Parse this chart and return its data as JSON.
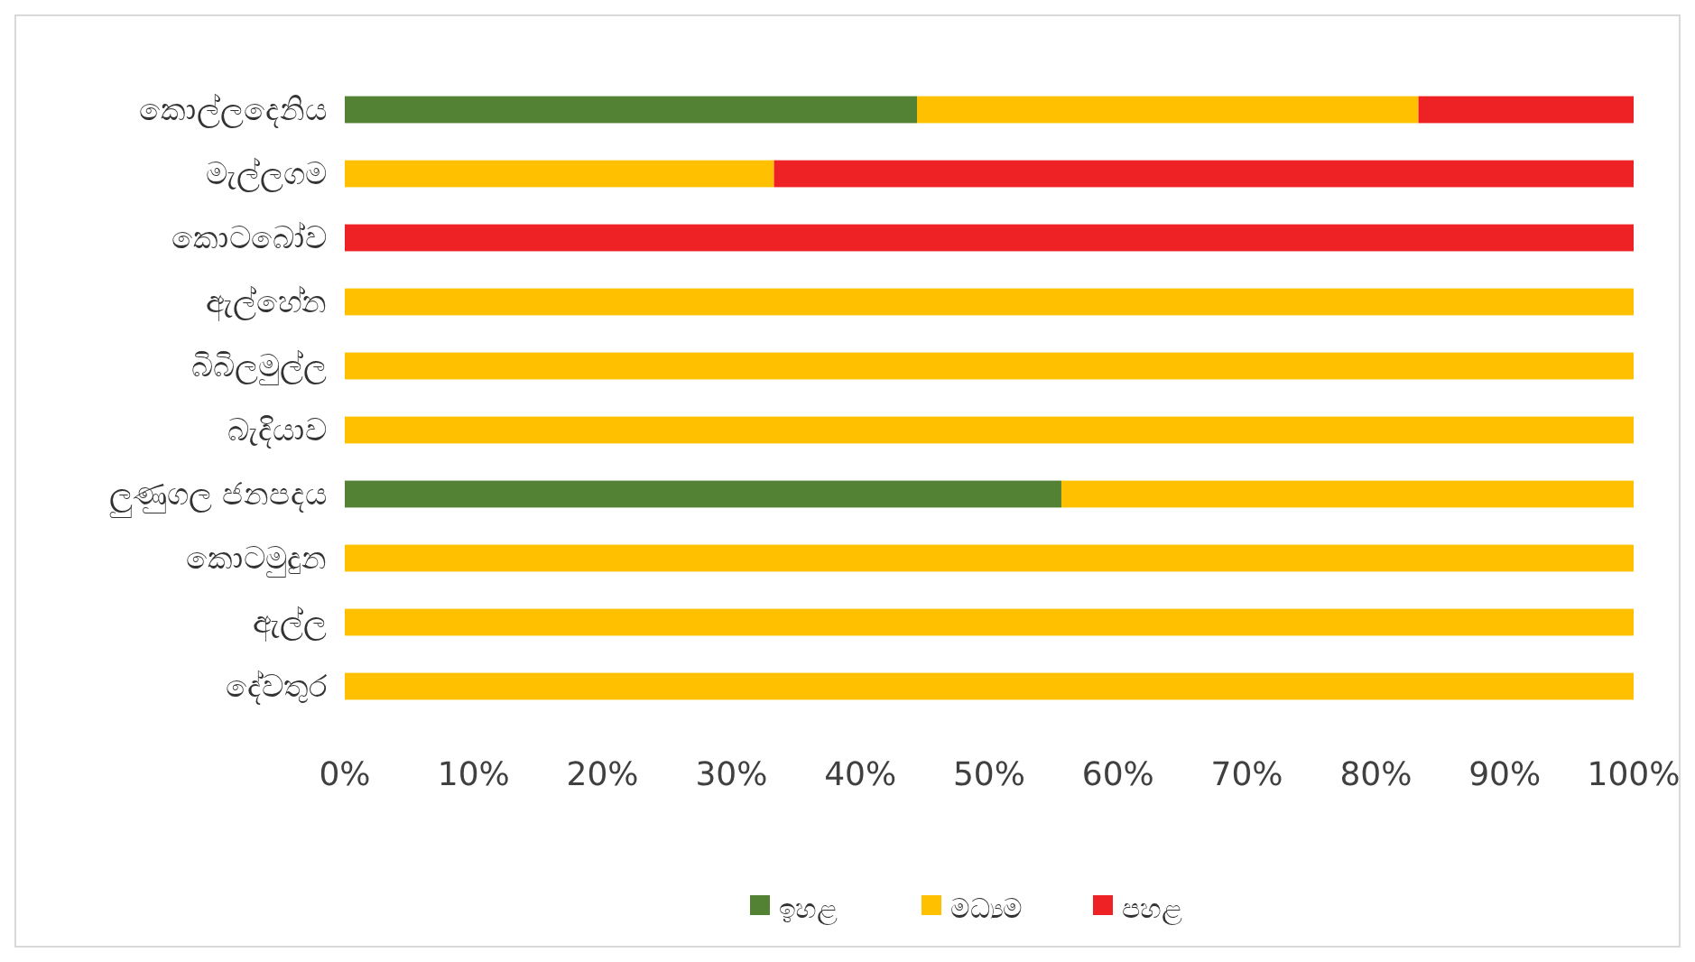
{
  "chart_data": {
    "type": "bar",
    "orientation": "horizontal",
    "stacked": true,
    "categories": [
      "කොල්ලදෙනිය",
      "මැල්ලගම",
      "කොටබෝව",
      "ඇල්හේන",
      "බිබිලමුල්ල",
      "බැදියාව",
      "ලුණුගල ජනපදය",
      "කොටමුදුන",
      "ඇල්ල",
      "දේවතුර"
    ],
    "series": [
      {
        "name": "ඉහළ",
        "color": "#548235",
        "values": [
          44.4,
          0,
          0,
          0,
          0,
          0,
          55.6,
          0,
          0,
          0
        ]
      },
      {
        "name": "මධ්‍යම",
        "color": "#ffc000",
        "values": [
          38.9,
          33.3,
          0,
          100,
          100,
          100,
          44.4,
          100,
          100,
          100
        ]
      },
      {
        "name": "පහළ",
        "color": "#ee2224",
        "values": [
          16.7,
          66.7,
          100,
          0,
          0,
          0,
          0,
          0,
          0,
          0
        ]
      }
    ],
    "xlim": [
      0,
      100
    ],
    "xticks": [
      {
        "value": 0,
        "label": "0%"
      },
      {
        "value": 10,
        "label": "10%"
      },
      {
        "value": 20,
        "label": "20%"
      },
      {
        "value": 30,
        "label": "30%"
      },
      {
        "value": 40,
        "label": "40%"
      },
      {
        "value": 50,
        "label": "50%"
      },
      {
        "value": 60,
        "label": "60%"
      },
      {
        "value": 70,
        "label": "70%"
      },
      {
        "value": 80,
        "label": "80%"
      },
      {
        "value": 90,
        "label": "90%"
      },
      {
        "value": 100,
        "label": "100%"
      }
    ],
    "legend": "bottom"
  }
}
